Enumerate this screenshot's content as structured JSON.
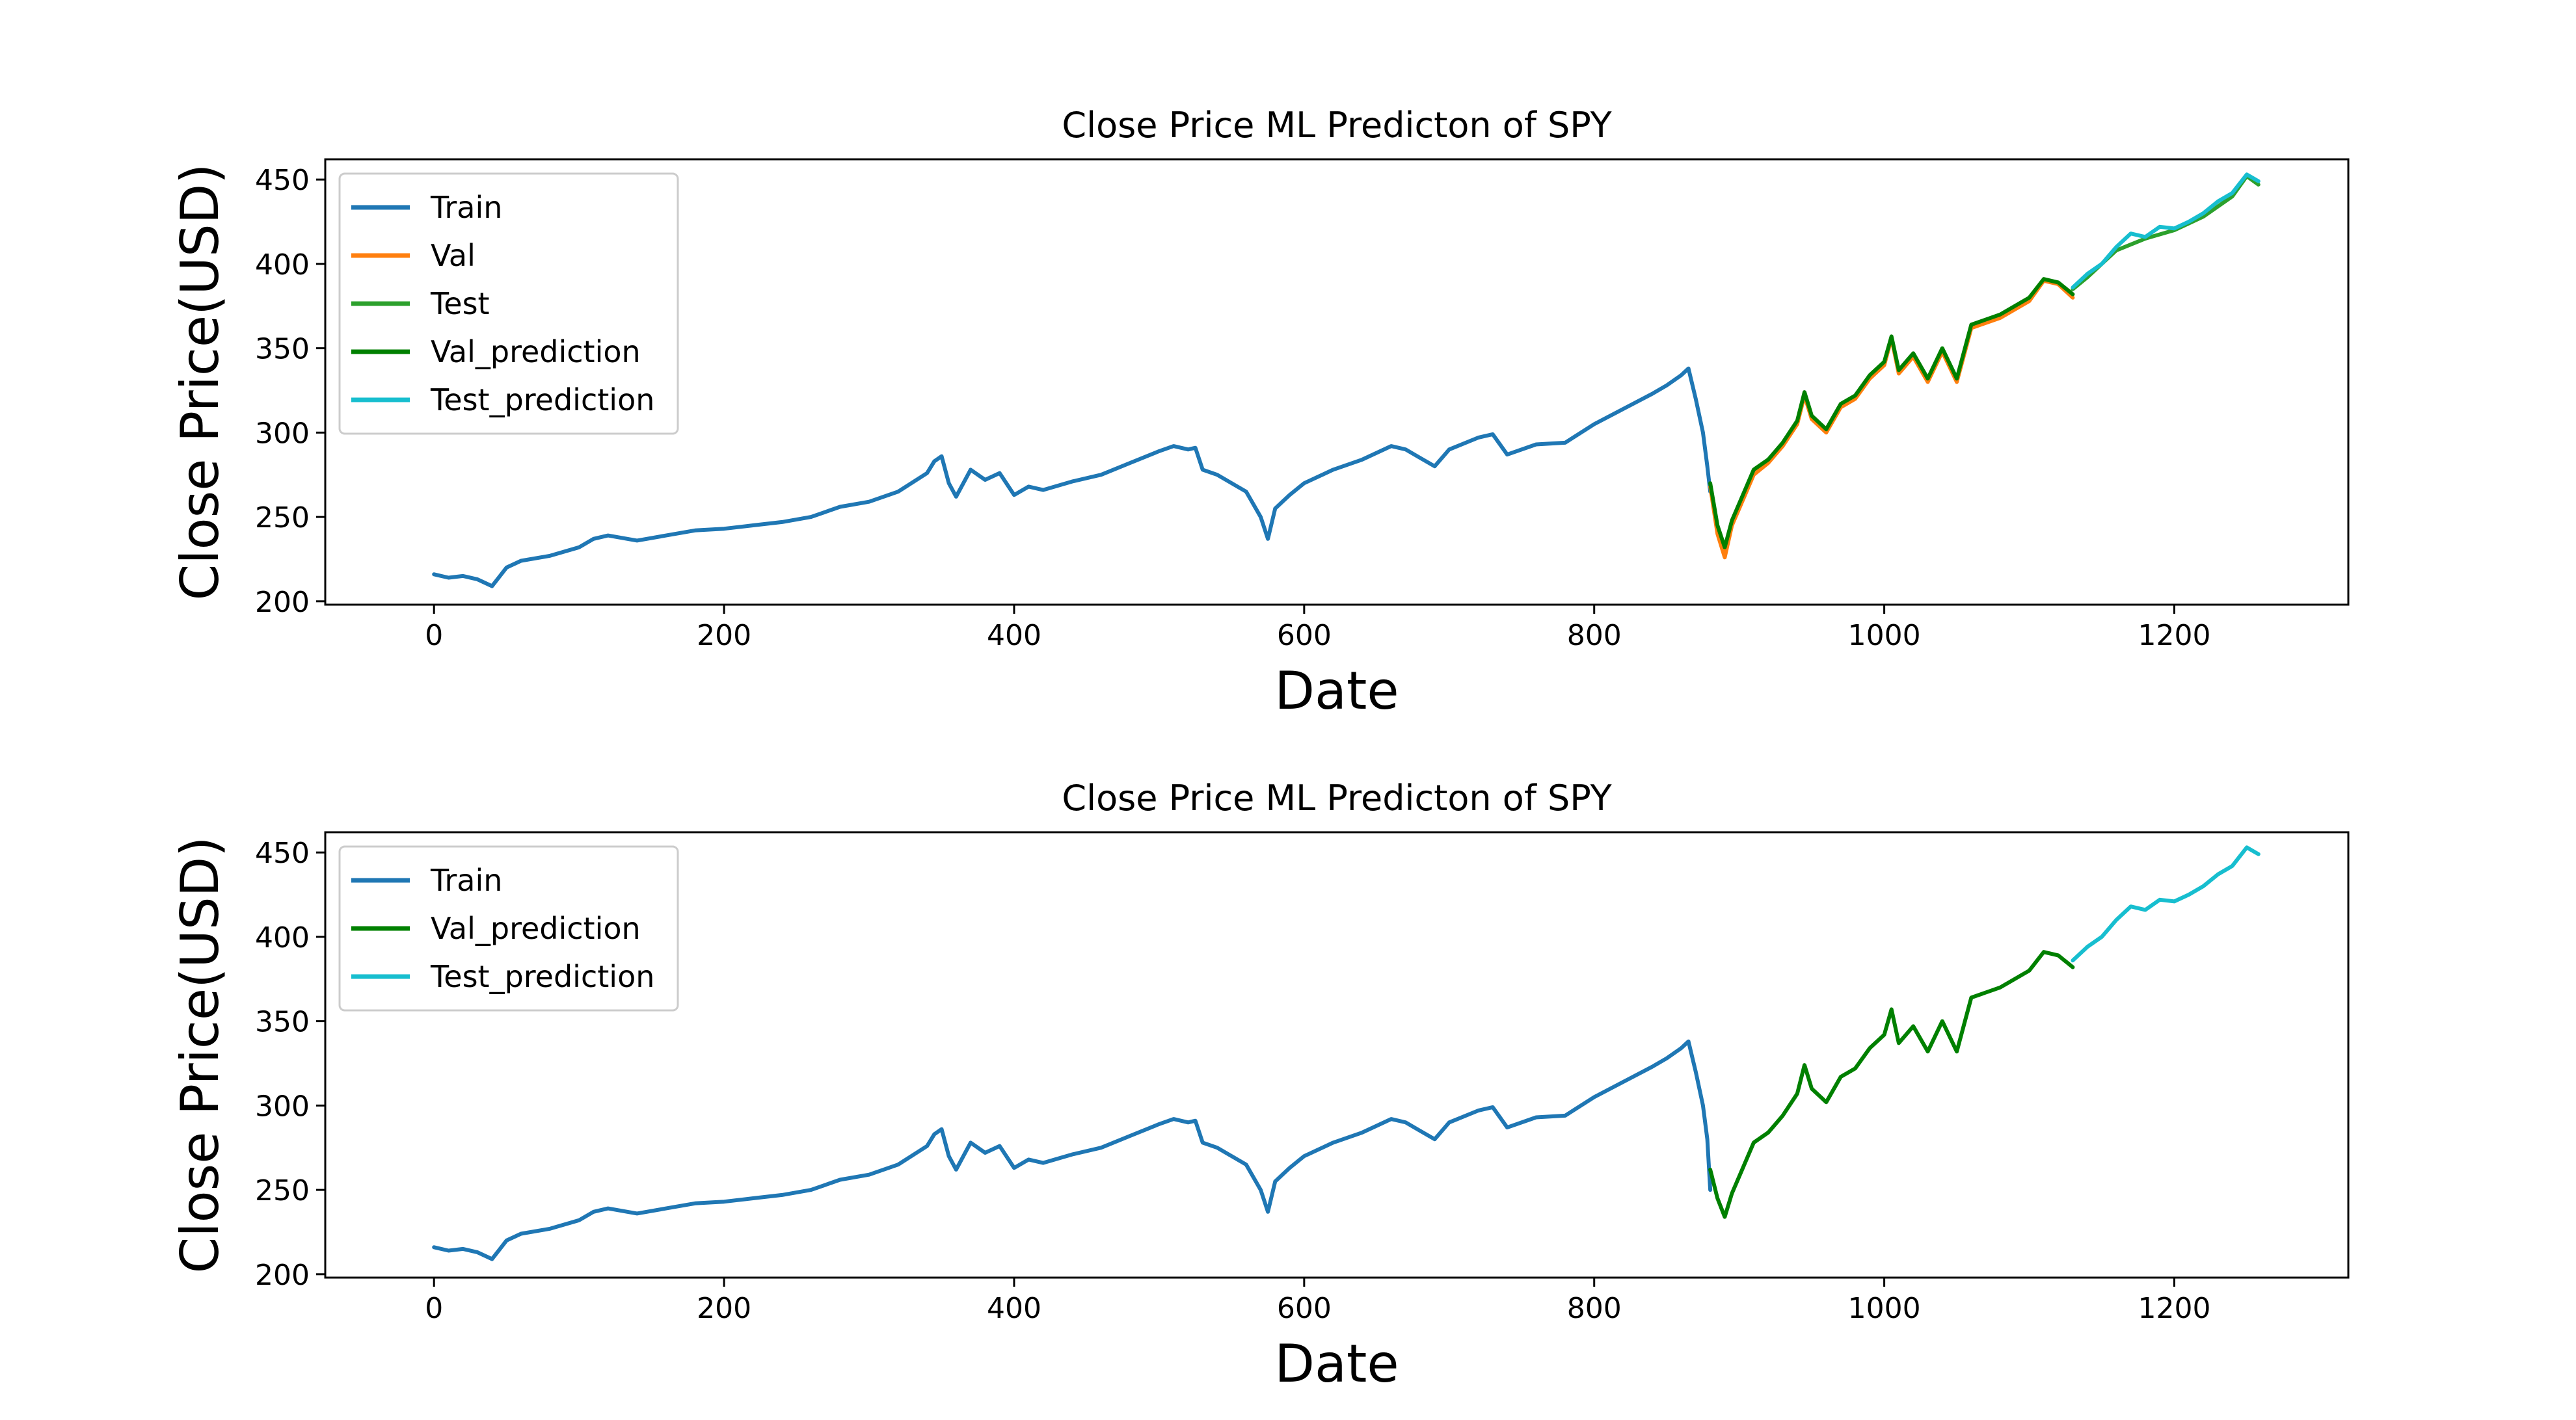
{
  "chart_data": [
    {
      "type": "line",
      "title": "Close Price ML Predicton of SPY",
      "xlabel": "Date",
      "ylabel": "Close Price(USD)",
      "xlim": [
        -75,
        1320
      ],
      "ylim": [
        198,
        462
      ],
      "xticks": [
        0,
        200,
        400,
        600,
        800,
        1000,
        1200
      ],
      "yticks": [
        200,
        250,
        300,
        350,
        400,
        450
      ],
      "grid": false,
      "legend": "upper left",
      "series": [
        {
          "name": "Train",
          "color": "#1f77b4",
          "points": [
            [
              0,
              216
            ],
            [
              10,
              214
            ],
            [
              20,
              215
            ],
            [
              30,
              213
            ],
            [
              40,
              209
            ],
            [
              50,
              220
            ],
            [
              60,
              224
            ],
            [
              80,
              227
            ],
            [
              100,
              232
            ],
            [
              110,
              237
            ],
            [
              120,
              239
            ],
            [
              140,
              236
            ],
            [
              160,
              239
            ],
            [
              180,
              242
            ],
            [
              200,
              243
            ],
            [
              220,
              245
            ],
            [
              240,
              247
            ],
            [
              260,
              250
            ],
            [
              280,
              256
            ],
            [
              300,
              259
            ],
            [
              320,
              265
            ],
            [
              340,
              276
            ],
            [
              345,
              283
            ],
            [
              350,
              286
            ],
            [
              355,
              270
            ],
            [
              360,
              262
            ],
            [
              370,
              278
            ],
            [
              380,
              272
            ],
            [
              390,
              276
            ],
            [
              400,
              263
            ],
            [
              410,
              268
            ],
            [
              420,
              266
            ],
            [
              440,
              271
            ],
            [
              460,
              275
            ],
            [
              480,
              282
            ],
            [
              500,
              289
            ],
            [
              510,
              292
            ],
            [
              520,
              290
            ],
            [
              525,
              291
            ],
            [
              530,
              278
            ],
            [
              540,
              275
            ],
            [
              550,
              270
            ],
            [
              560,
              265
            ],
            [
              570,
              250
            ],
            [
              575,
              237
            ],
            [
              580,
              255
            ],
            [
              590,
              263
            ],
            [
              600,
              270
            ],
            [
              620,
              278
            ],
            [
              640,
              284
            ],
            [
              660,
              292
            ],
            [
              670,
              290
            ],
            [
              680,
              285
            ],
            [
              690,
              280
            ],
            [
              700,
              290
            ],
            [
              720,
              297
            ],
            [
              730,
              299
            ],
            [
              740,
              287
            ],
            [
              760,
              293
            ],
            [
              780,
              294
            ],
            [
              800,
              305
            ],
            [
              820,
              314
            ],
            [
              840,
              323
            ],
            [
              850,
              328
            ],
            [
              860,
              334
            ],
            [
              865,
              338
            ],
            [
              870,
              320
            ],
            [
              875,
              300
            ],
            [
              878,
              280
            ],
            [
              880,
              265
            ]
          ]
        },
        {
          "name": "Val",
          "color": "#ff7f0e",
          "points": [
            [
              880,
              268
            ],
            [
              885,
              240
            ],
            [
              890,
              226
            ],
            [
              895,
              245
            ],
            [
              900,
              255
            ],
            [
              910,
              275
            ],
            [
              920,
              282
            ],
            [
              930,
              292
            ],
            [
              940,
              305
            ],
            [
              945,
              322
            ],
            [
              950,
              308
            ],
            [
              960,
              300
            ],
            [
              970,
              315
            ],
            [
              980,
              320
            ],
            [
              990,
              332
            ],
            [
              1000,
              340
            ],
            [
              1005,
              356
            ],
            [
              1010,
              335
            ],
            [
              1020,
              345
            ],
            [
              1030,
              330
            ],
            [
              1040,
              348
            ],
            [
              1050,
              330
            ],
            [
              1060,
              362
            ],
            [
              1080,
              368
            ],
            [
              1100,
              378
            ],
            [
              1110,
              390
            ],
            [
              1120,
              388
            ],
            [
              1130,
              380
            ]
          ]
        },
        {
          "name": "Test",
          "color": "#2ca02c",
          "points": [
            [
              1130,
              385
            ],
            [
              1140,
              392
            ],
            [
              1160,
              408
            ],
            [
              1180,
              415
            ],
            [
              1200,
              420
            ],
            [
              1220,
              428
            ],
            [
              1240,
              440
            ],
            [
              1250,
              452
            ],
            [
              1258,
              447
            ]
          ]
        },
        {
          "name": "Val_prediction",
          "color": "#008000",
          "points": [
            [
              880,
              270
            ],
            [
              885,
              245
            ],
            [
              890,
              232
            ],
            [
              895,
              248
            ],
            [
              900,
              258
            ],
            [
              910,
              278
            ],
            [
              920,
              284
            ],
            [
              930,
              294
            ],
            [
              940,
              307
            ],
            [
              945,
              324
            ],
            [
              950,
              310
            ],
            [
              960,
              302
            ],
            [
              970,
              317
            ],
            [
              980,
              322
            ],
            [
              990,
              334
            ],
            [
              1000,
              342
            ],
            [
              1005,
              357
            ],
            [
              1010,
              337
            ],
            [
              1020,
              347
            ],
            [
              1030,
              332
            ],
            [
              1040,
              350
            ],
            [
              1050,
              332
            ],
            [
              1060,
              364
            ],
            [
              1080,
              370
            ],
            [
              1100,
              380
            ],
            [
              1110,
              391
            ],
            [
              1120,
              389
            ],
            [
              1130,
              382
            ]
          ]
        },
        {
          "name": "Test_prediction",
          "color": "#17becf",
          "points": [
            [
              1130,
              386
            ],
            [
              1140,
              394
            ],
            [
              1150,
              400
            ],
            [
              1160,
              410
            ],
            [
              1170,
              418
            ],
            [
              1180,
              416
            ],
            [
              1190,
              422
            ],
            [
              1200,
              421
            ],
            [
              1210,
              425
            ],
            [
              1220,
              430
            ],
            [
              1230,
              437
            ],
            [
              1240,
              442
            ],
            [
              1250,
              453
            ],
            [
              1258,
              449
            ]
          ]
        }
      ]
    },
    {
      "type": "line",
      "title": "Close Price ML Predicton of SPY",
      "xlabel": "Date",
      "ylabel": "Close Price(USD)",
      "xlim": [
        -75,
        1320
      ],
      "ylim": [
        198,
        462
      ],
      "xticks": [
        0,
        200,
        400,
        600,
        800,
        1000,
        1200
      ],
      "yticks": [
        200,
        250,
        300,
        350,
        400,
        450
      ],
      "grid": false,
      "legend": "upper left",
      "series": [
        {
          "name": "Train",
          "color": "#1f77b4",
          "points": [
            [
              0,
              216
            ],
            [
              10,
              214
            ],
            [
              20,
              215
            ],
            [
              30,
              213
            ],
            [
              40,
              209
            ],
            [
              50,
              220
            ],
            [
              60,
              224
            ],
            [
              80,
              227
            ],
            [
              100,
              232
            ],
            [
              110,
              237
            ],
            [
              120,
              239
            ],
            [
              140,
              236
            ],
            [
              160,
              239
            ],
            [
              180,
              242
            ],
            [
              200,
              243
            ],
            [
              220,
              245
            ],
            [
              240,
              247
            ],
            [
              260,
              250
            ],
            [
              280,
              256
            ],
            [
              300,
              259
            ],
            [
              320,
              265
            ],
            [
              340,
              276
            ],
            [
              345,
              283
            ],
            [
              350,
              286
            ],
            [
              355,
              270
            ],
            [
              360,
              262
            ],
            [
              370,
              278
            ],
            [
              380,
              272
            ],
            [
              390,
              276
            ],
            [
              400,
              263
            ],
            [
              410,
              268
            ],
            [
              420,
              266
            ],
            [
              440,
              271
            ],
            [
              460,
              275
            ],
            [
              480,
              282
            ],
            [
              500,
              289
            ],
            [
              510,
              292
            ],
            [
              520,
              290
            ],
            [
              525,
              291
            ],
            [
              530,
              278
            ],
            [
              540,
              275
            ],
            [
              550,
              270
            ],
            [
              560,
              265
            ],
            [
              570,
              250
            ],
            [
              575,
              237
            ],
            [
              580,
              255
            ],
            [
              590,
              263
            ],
            [
              600,
              270
            ],
            [
              620,
              278
            ],
            [
              640,
              284
            ],
            [
              660,
              292
            ],
            [
              670,
              290
            ],
            [
              680,
              285
            ],
            [
              690,
              280
            ],
            [
              700,
              290
            ],
            [
              720,
              297
            ],
            [
              730,
              299
            ],
            [
              740,
              287
            ],
            [
              760,
              293
            ],
            [
              780,
              294
            ],
            [
              800,
              305
            ],
            [
              820,
              314
            ],
            [
              840,
              323
            ],
            [
              850,
              328
            ],
            [
              860,
              334
            ],
            [
              865,
              338
            ],
            [
              870,
              320
            ],
            [
              875,
              300
            ],
            [
              878,
              280
            ],
            [
              880,
              250
            ]
          ]
        },
        {
          "name": "Val_prediction",
          "color": "#008000",
          "points": [
            [
              880,
              262
            ],
            [
              885,
              245
            ],
            [
              890,
              234
            ],
            [
              895,
              248
            ],
            [
              900,
              258
            ],
            [
              910,
              278
            ],
            [
              920,
              284
            ],
            [
              930,
              294
            ],
            [
              940,
              307
            ],
            [
              945,
              324
            ],
            [
              950,
              310
            ],
            [
              960,
              302
            ],
            [
              970,
              317
            ],
            [
              980,
              322
            ],
            [
              990,
              334
            ],
            [
              1000,
              342
            ],
            [
              1005,
              357
            ],
            [
              1010,
              337
            ],
            [
              1020,
              347
            ],
            [
              1030,
              332
            ],
            [
              1040,
              350
            ],
            [
              1050,
              332
            ],
            [
              1060,
              364
            ],
            [
              1080,
              370
            ],
            [
              1100,
              380
            ],
            [
              1110,
              391
            ],
            [
              1120,
              389
            ],
            [
              1130,
              382
            ]
          ]
        },
        {
          "name": "Test_prediction",
          "color": "#17becf",
          "points": [
            [
              1130,
              386
            ],
            [
              1140,
              394
            ],
            [
              1150,
              400
            ],
            [
              1160,
              410
            ],
            [
              1170,
              418
            ],
            [
              1180,
              416
            ],
            [
              1190,
              422
            ],
            [
              1200,
              421
            ],
            [
              1210,
              425
            ],
            [
              1220,
              430
            ],
            [
              1230,
              437
            ],
            [
              1240,
              442
            ],
            [
              1250,
              453
            ],
            [
              1258,
              449
            ]
          ]
        }
      ]
    }
  ]
}
